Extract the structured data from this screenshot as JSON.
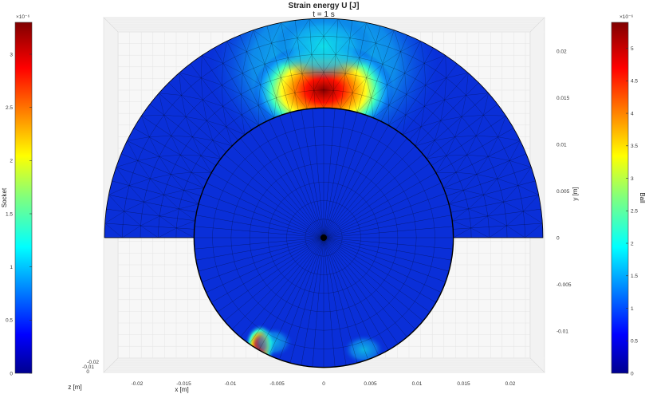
{
  "chart_data": {
    "type": "heatmap",
    "title": "Strain energy U [J]",
    "subtitle": "t = 1 s",
    "xlabel": "x [m]",
    "ylabel": "y [m]",
    "zlabel": "z [m]",
    "x_ticks": [
      "-0.02",
      "-0.015",
      "-0.01",
      "-0.005",
      "0",
      "0.005",
      "0.01",
      "0.015",
      "0.02"
    ],
    "y_ticks": [
      "0.02",
      "0.015",
      "0.01",
      "0.005",
      "0",
      "-0.005",
      "-0.01"
    ],
    "z_ticks": [
      "-0.02",
      "-0.01",
      "0"
    ],
    "xlim": [
      -0.0235,
      0.0235
    ],
    "ylim": [
      -0.0138,
      0.0235
    ],
    "grid": true,
    "colormap": "jet",
    "colorbars": [
      {
        "name": "Socket",
        "side": "left",
        "exponent_label": "×10⁻⁶",
        "range": [
          0,
          3.3e-06
        ],
        "tick_labels": [
          "3",
          "2.5",
          "2",
          "1.5",
          "1",
          "0.5",
          "0"
        ],
        "tick_values": [
          3,
          2.5,
          2,
          1.5,
          1,
          0.5,
          0
        ]
      },
      {
        "name": "Ball",
        "side": "right",
        "exponent_label": "×10⁻⁶",
        "range": [
          0,
          5.4e-06
        ],
        "tick_labels": [
          "5",
          "4.5",
          "4",
          "3.5",
          "3",
          "2.5",
          "2",
          "1.5",
          "1",
          "0.5",
          "0"
        ],
        "tick_values": [
          5,
          4.5,
          4,
          3.5,
          3,
          2.5,
          2,
          1.5,
          1,
          0.5,
          0
        ]
      }
    ],
    "regions": [
      {
        "name": "Socket",
        "shape": "half-annulus",
        "inner_radius": 0.0139,
        "outer_radius": 0.0235,
        "y_range": [
          0,
          0.0235
        ]
      },
      {
        "name": "Ball",
        "shape": "disc",
        "radius": 0.0139
      }
    ],
    "hotspots": [
      {
        "region": "Socket",
        "x": 0.0,
        "y": 0.0158,
        "level": 0.98
      },
      {
        "region": "Socket",
        "x": 0.0,
        "y": 0.0205,
        "level": 0.42
      },
      {
        "region": "Ball",
        "x": -0.0068,
        "y": -0.0115,
        "level": 0.95
      },
      {
        "region": "Ball",
        "x": -0.0055,
        "y": -0.0112,
        "level": 0.22
      },
      {
        "region": "Ball",
        "x": 0.0043,
        "y": -0.012,
        "level": 0.18
      }
    ]
  }
}
